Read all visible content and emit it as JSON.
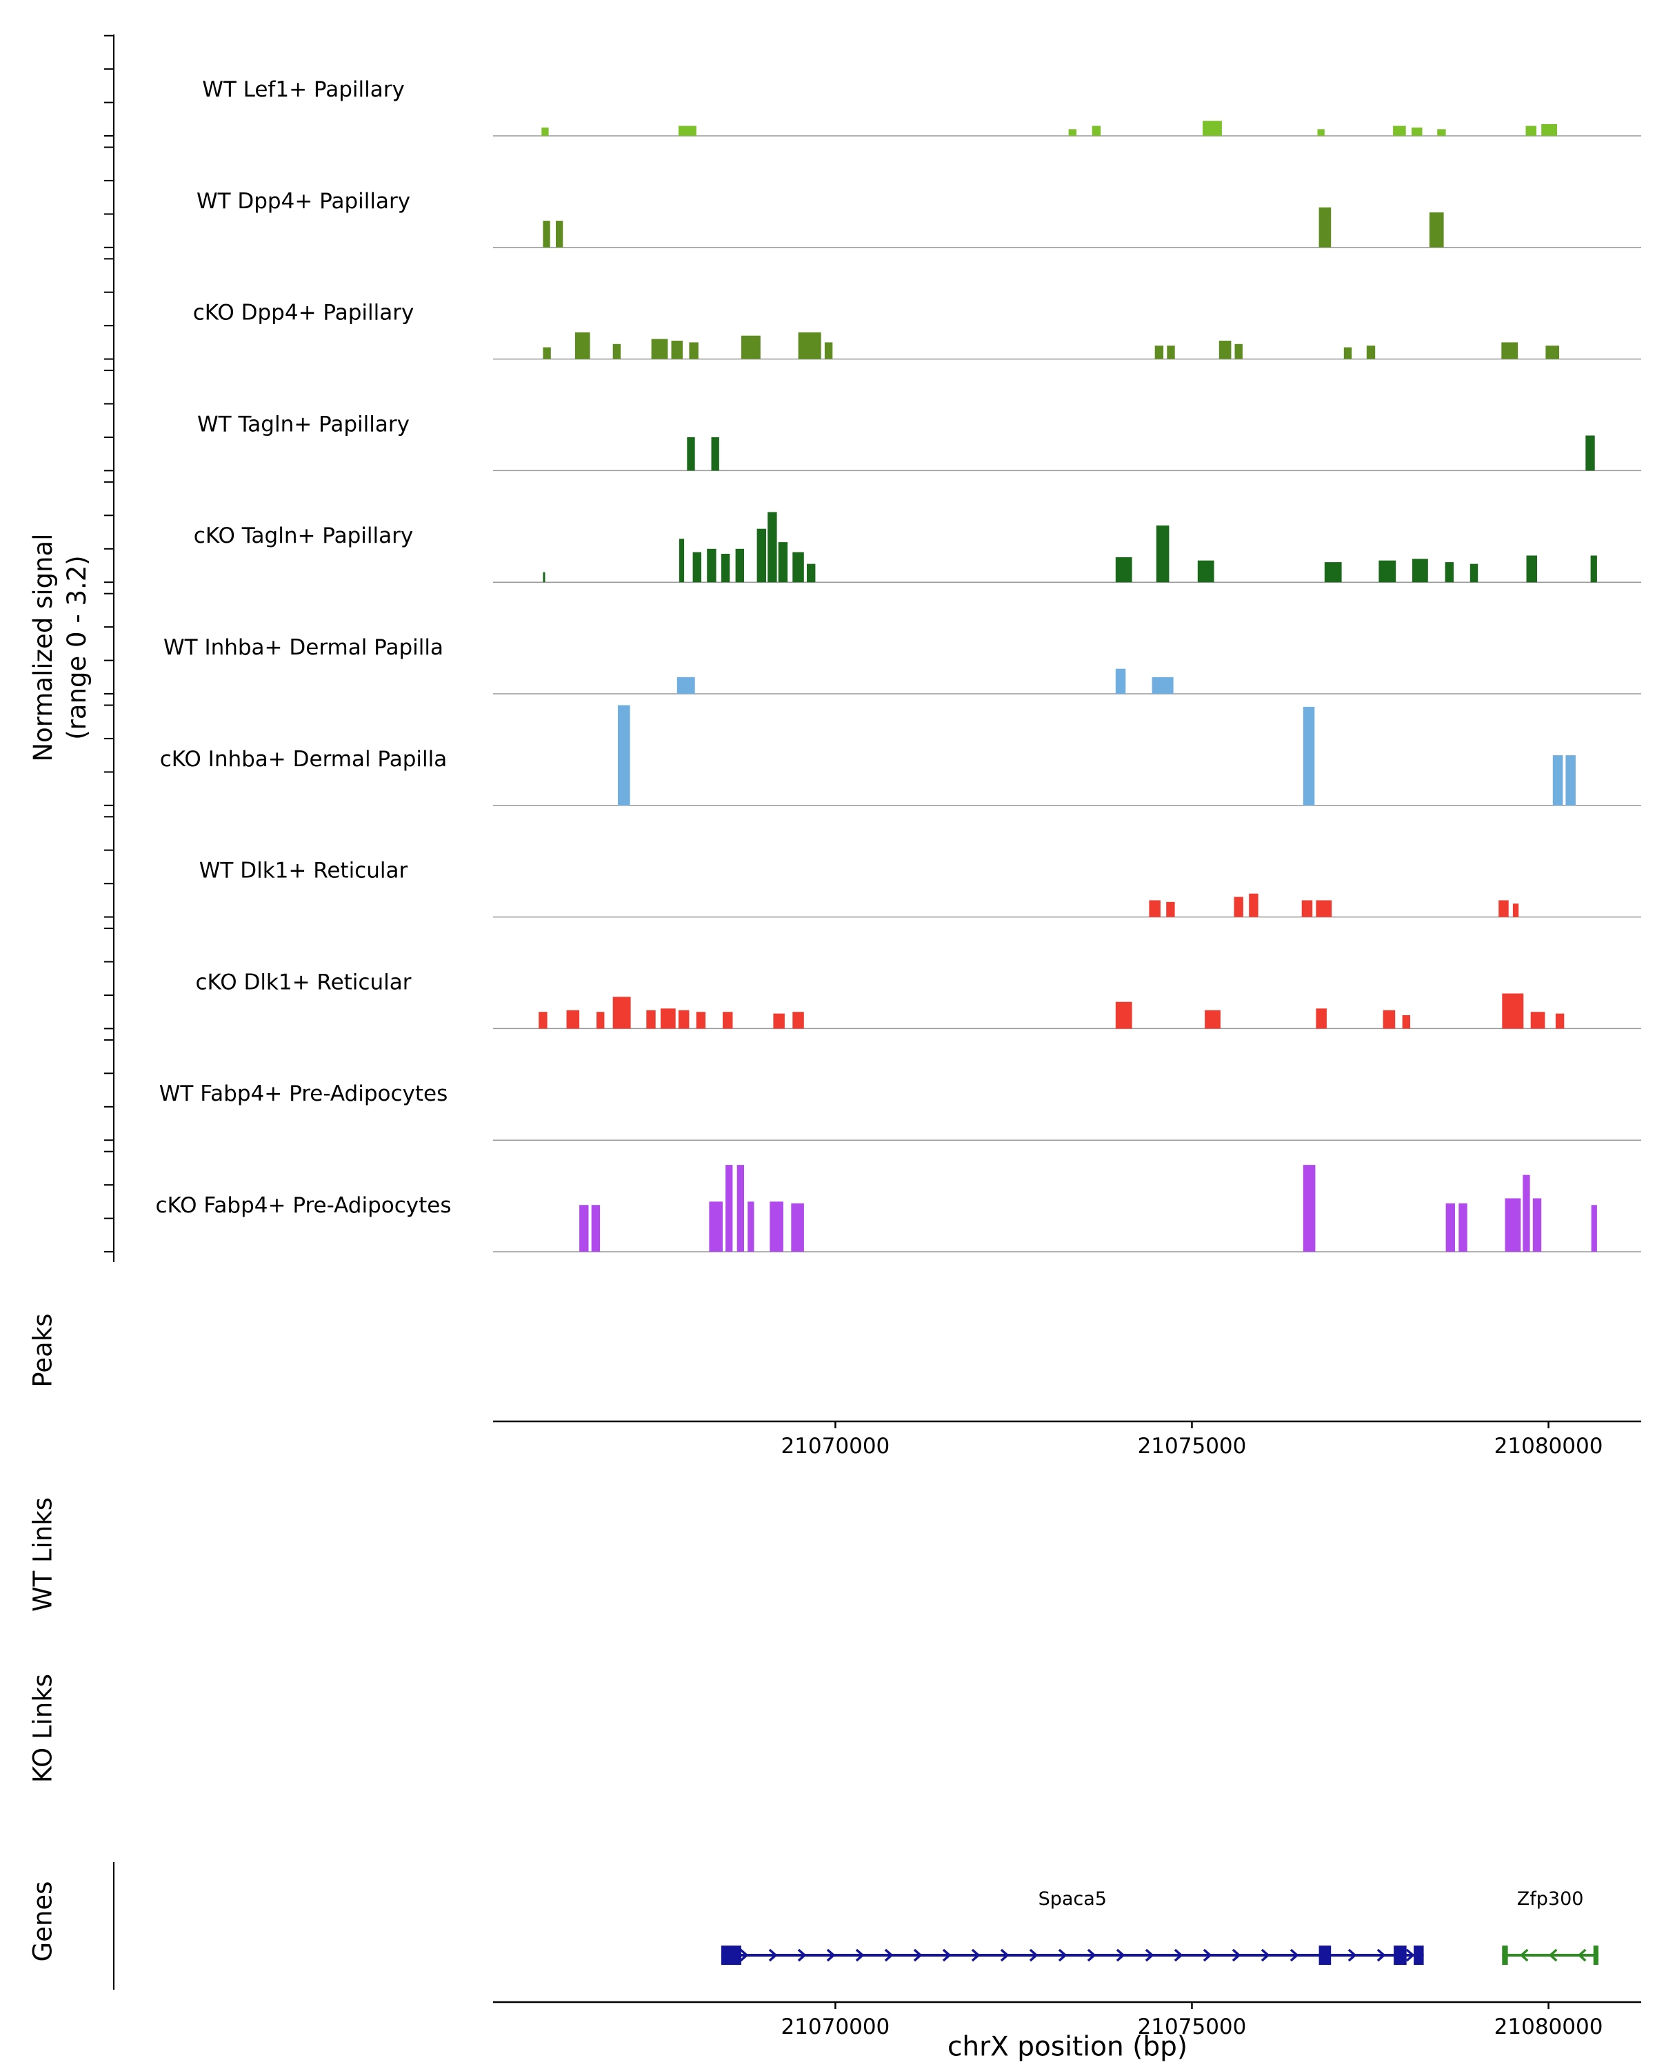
{
  "chart_data": {
    "type": "area",
    "description": "Genome browser coverage tracks, chrX",
    "region": {
      "chrom": "chrX",
      "start": 21065200,
      "end": 21081300
    },
    "x_ticks": [
      21070000,
      21075000,
      21080000
    ],
    "y_range": [
      0,
      3.2
    ],
    "ylabel_line1": "Normalized signal",
    "ylabel_line2": "(range 0 - 3.2)",
    "xlabel": "chrX position (bp)",
    "sections": [
      "Peaks",
      "WT Links",
      "KO Links",
      "Genes"
    ],
    "tracks": [
      {
        "label": "WT Lef1+ Papillary",
        "color": "#7CC12A",
        "peaks": [
          [
            21065880,
            21065980,
            0.25
          ],
          [
            21067800,
            21068050,
            0.3
          ],
          [
            21073270,
            21073380,
            0.2
          ],
          [
            21073600,
            21073720,
            0.3
          ],
          [
            21075150,
            21075420,
            0.45
          ],
          [
            21076760,
            21076860,
            0.2
          ],
          [
            21077820,
            21078000,
            0.3
          ],
          [
            21078080,
            21078230,
            0.25
          ],
          [
            21078440,
            21078560,
            0.2
          ],
          [
            21079680,
            21079830,
            0.3
          ],
          [
            21079900,
            21080120,
            0.35
          ]
        ]
      },
      {
        "label": "WT Dpp4+ Papillary",
        "color": "#5F8C21",
        "peaks": [
          [
            21065900,
            21066000,
            0.8
          ],
          [
            21066080,
            21066180,
            0.8
          ],
          [
            21076780,
            21076950,
            1.2
          ],
          [
            21078330,
            21078530,
            1.05
          ]
        ]
      },
      {
        "label": "cKO Dpp4+ Papillary",
        "color": "#5F8C21",
        "peaks": [
          [
            21065900,
            21066010,
            0.35
          ],
          [
            21066350,
            21066560,
            0.8
          ],
          [
            21066880,
            21066990,
            0.45
          ],
          [
            21067420,
            21067650,
            0.6
          ],
          [
            21067700,
            21067860,
            0.55
          ],
          [
            21067950,
            21068080,
            0.5
          ],
          [
            21068680,
            21068950,
            0.7
          ],
          [
            21069480,
            21069800,
            0.8
          ],
          [
            21069850,
            21069960,
            0.5
          ],
          [
            21074480,
            21074600,
            0.4
          ],
          [
            21074650,
            21074760,
            0.4
          ],
          [
            21075380,
            21075550,
            0.55
          ],
          [
            21075600,
            21075710,
            0.45
          ],
          [
            21077130,
            21077240,
            0.35
          ],
          [
            21077450,
            21077570,
            0.4
          ],
          [
            21079340,
            21079570,
            0.5
          ],
          [
            21079960,
            21080150,
            0.4
          ]
        ]
      },
      {
        "label": "WT Tagln+ Papillary",
        "color": "#1A691A",
        "peaks": [
          [
            21067920,
            21068030,
            1.0
          ],
          [
            21068260,
            21068370,
            1.0
          ],
          [
            21080520,
            21080650,
            1.05
          ]
        ]
      },
      {
        "label": "cKO Tagln+ Papillary",
        "color": "#1A691A",
        "peaks": [
          [
            21065900,
            21065930,
            0.3
          ],
          [
            21067810,
            21067880,
            1.3
          ],
          [
            21068000,
            21068120,
            0.9
          ],
          [
            21068200,
            21068330,
            1.0
          ],
          [
            21068400,
            21068520,
            0.85
          ],
          [
            21068600,
            21068720,
            1.0
          ],
          [
            21068900,
            21069030,
            1.6
          ],
          [
            21069050,
            21069180,
            2.1
          ],
          [
            21069200,
            21069330,
            1.2
          ],
          [
            21069400,
            21069560,
            0.9
          ],
          [
            21069600,
            21069720,
            0.55
          ],
          [
            21073930,
            21074160,
            0.75
          ],
          [
            21074500,
            21074680,
            1.7
          ],
          [
            21075080,
            21075310,
            0.65
          ],
          [
            21076860,
            21077100,
            0.6
          ],
          [
            21077620,
            21077860,
            0.65
          ],
          [
            21078090,
            21078310,
            0.7
          ],
          [
            21078550,
            21078670,
            0.6
          ],
          [
            21078900,
            21079010,
            0.55
          ],
          [
            21079690,
            21079840,
            0.8
          ],
          [
            21080590,
            21080680,
            0.8
          ]
        ]
      },
      {
        "label": "WT Inhba+ Dermal Papilla",
        "color": "#70AEE0",
        "peaks": [
          [
            21067780,
            21068030,
            0.5
          ],
          [
            21073930,
            21074070,
            0.75
          ],
          [
            21074440,
            21074740,
            0.5
          ]
        ]
      },
      {
        "label": "cKO Inhba+ Dermal Papilla",
        "color": "#70AEE0",
        "peaks": [
          [
            21066950,
            21067120,
            3.0
          ],
          [
            21076560,
            21076720,
            2.95
          ],
          [
            21080060,
            21080200,
            1.5
          ],
          [
            21080240,
            21080380,
            1.5
          ]
        ]
      },
      {
        "label": "WT Dlk1+ Reticular",
        "color": "#F03B30",
        "peaks": [
          [
            21074400,
            21074560,
            0.5
          ],
          [
            21074640,
            21074760,
            0.45
          ],
          [
            21075590,
            21075720,
            0.6
          ],
          [
            21075800,
            21075930,
            0.7
          ],
          [
            21076540,
            21076690,
            0.5
          ],
          [
            21076740,
            21076960,
            0.5
          ],
          [
            21079300,
            21079440,
            0.5
          ],
          [
            21079500,
            21079580,
            0.4
          ]
        ]
      },
      {
        "label": "cKO Dlk1+ Reticular",
        "color": "#F03B30",
        "peaks": [
          [
            21065840,
            21065960,
            0.5
          ],
          [
            21066230,
            21066410,
            0.55
          ],
          [
            21066650,
            21066760,
            0.5
          ],
          [
            21066880,
            21067130,
            0.95
          ],
          [
            21067350,
            21067480,
            0.55
          ],
          [
            21067550,
            21067760,
            0.6
          ],
          [
            21067800,
            21067950,
            0.55
          ],
          [
            21068050,
            21068180,
            0.5
          ],
          [
            21068420,
            21068560,
            0.5
          ],
          [
            21069130,
            21069290,
            0.45
          ],
          [
            21069400,
            21069560,
            0.5
          ],
          [
            21073930,
            21074160,
            0.8
          ],
          [
            21075180,
            21075400,
            0.55
          ],
          [
            21076740,
            21076890,
            0.6
          ],
          [
            21077680,
            21077850,
            0.55
          ],
          [
            21077950,
            21078060,
            0.4
          ],
          [
            21079350,
            21079650,
            1.05
          ],
          [
            21079750,
            21079950,
            0.5
          ],
          [
            21080100,
            21080220,
            0.45
          ]
        ]
      },
      {
        "label": "WT Fabp4+ Pre-Adipocytes",
        "color": "#B14AEC",
        "peaks": []
      },
      {
        "label": "cKO Fabp4+ Pre-Adipocytes",
        "color": "#B14AEC",
        "peaks": [
          [
            21066410,
            21066540,
            1.4
          ],
          [
            21066580,
            21066700,
            1.4
          ],
          [
            21068230,
            21068420,
            1.5
          ],
          [
            21068460,
            21068560,
            2.6
          ],
          [
            21068620,
            21068720,
            2.6
          ],
          [
            21068770,
            21068860,
            1.5
          ],
          [
            21069080,
            21069270,
            1.5
          ],
          [
            21069380,
            21069560,
            1.45
          ],
          [
            21076560,
            21076730,
            2.6
          ],
          [
            21078560,
            21078690,
            1.45
          ],
          [
            21078740,
            21078860,
            1.45
          ],
          [
            21079390,
            21079610,
            1.6
          ],
          [
            21079640,
            21079740,
            2.3
          ],
          [
            21079780,
            21079900,
            1.6
          ],
          [
            21080600,
            21080680,
            1.4
          ]
        ]
      }
    ],
    "genes": [
      {
        "name": "Spaca5",
        "color": "#14149B",
        "strand": "+",
        "start": 21068400,
        "end": 21078250,
        "exons": [
          [
            21068400,
            21068680
          ],
          [
            21076780,
            21076950
          ],
          [
            21077830,
            21078010
          ],
          [
            21078110,
            21078250
          ]
        ]
      },
      {
        "name": "Zfp300",
        "color": "#2E8B22",
        "strand": "-",
        "start": 21079350,
        "end": 21080700,
        "exons": [
          [
            21079350,
            21079430
          ],
          [
            21080630,
            21080700
          ]
        ]
      }
    ]
  }
}
